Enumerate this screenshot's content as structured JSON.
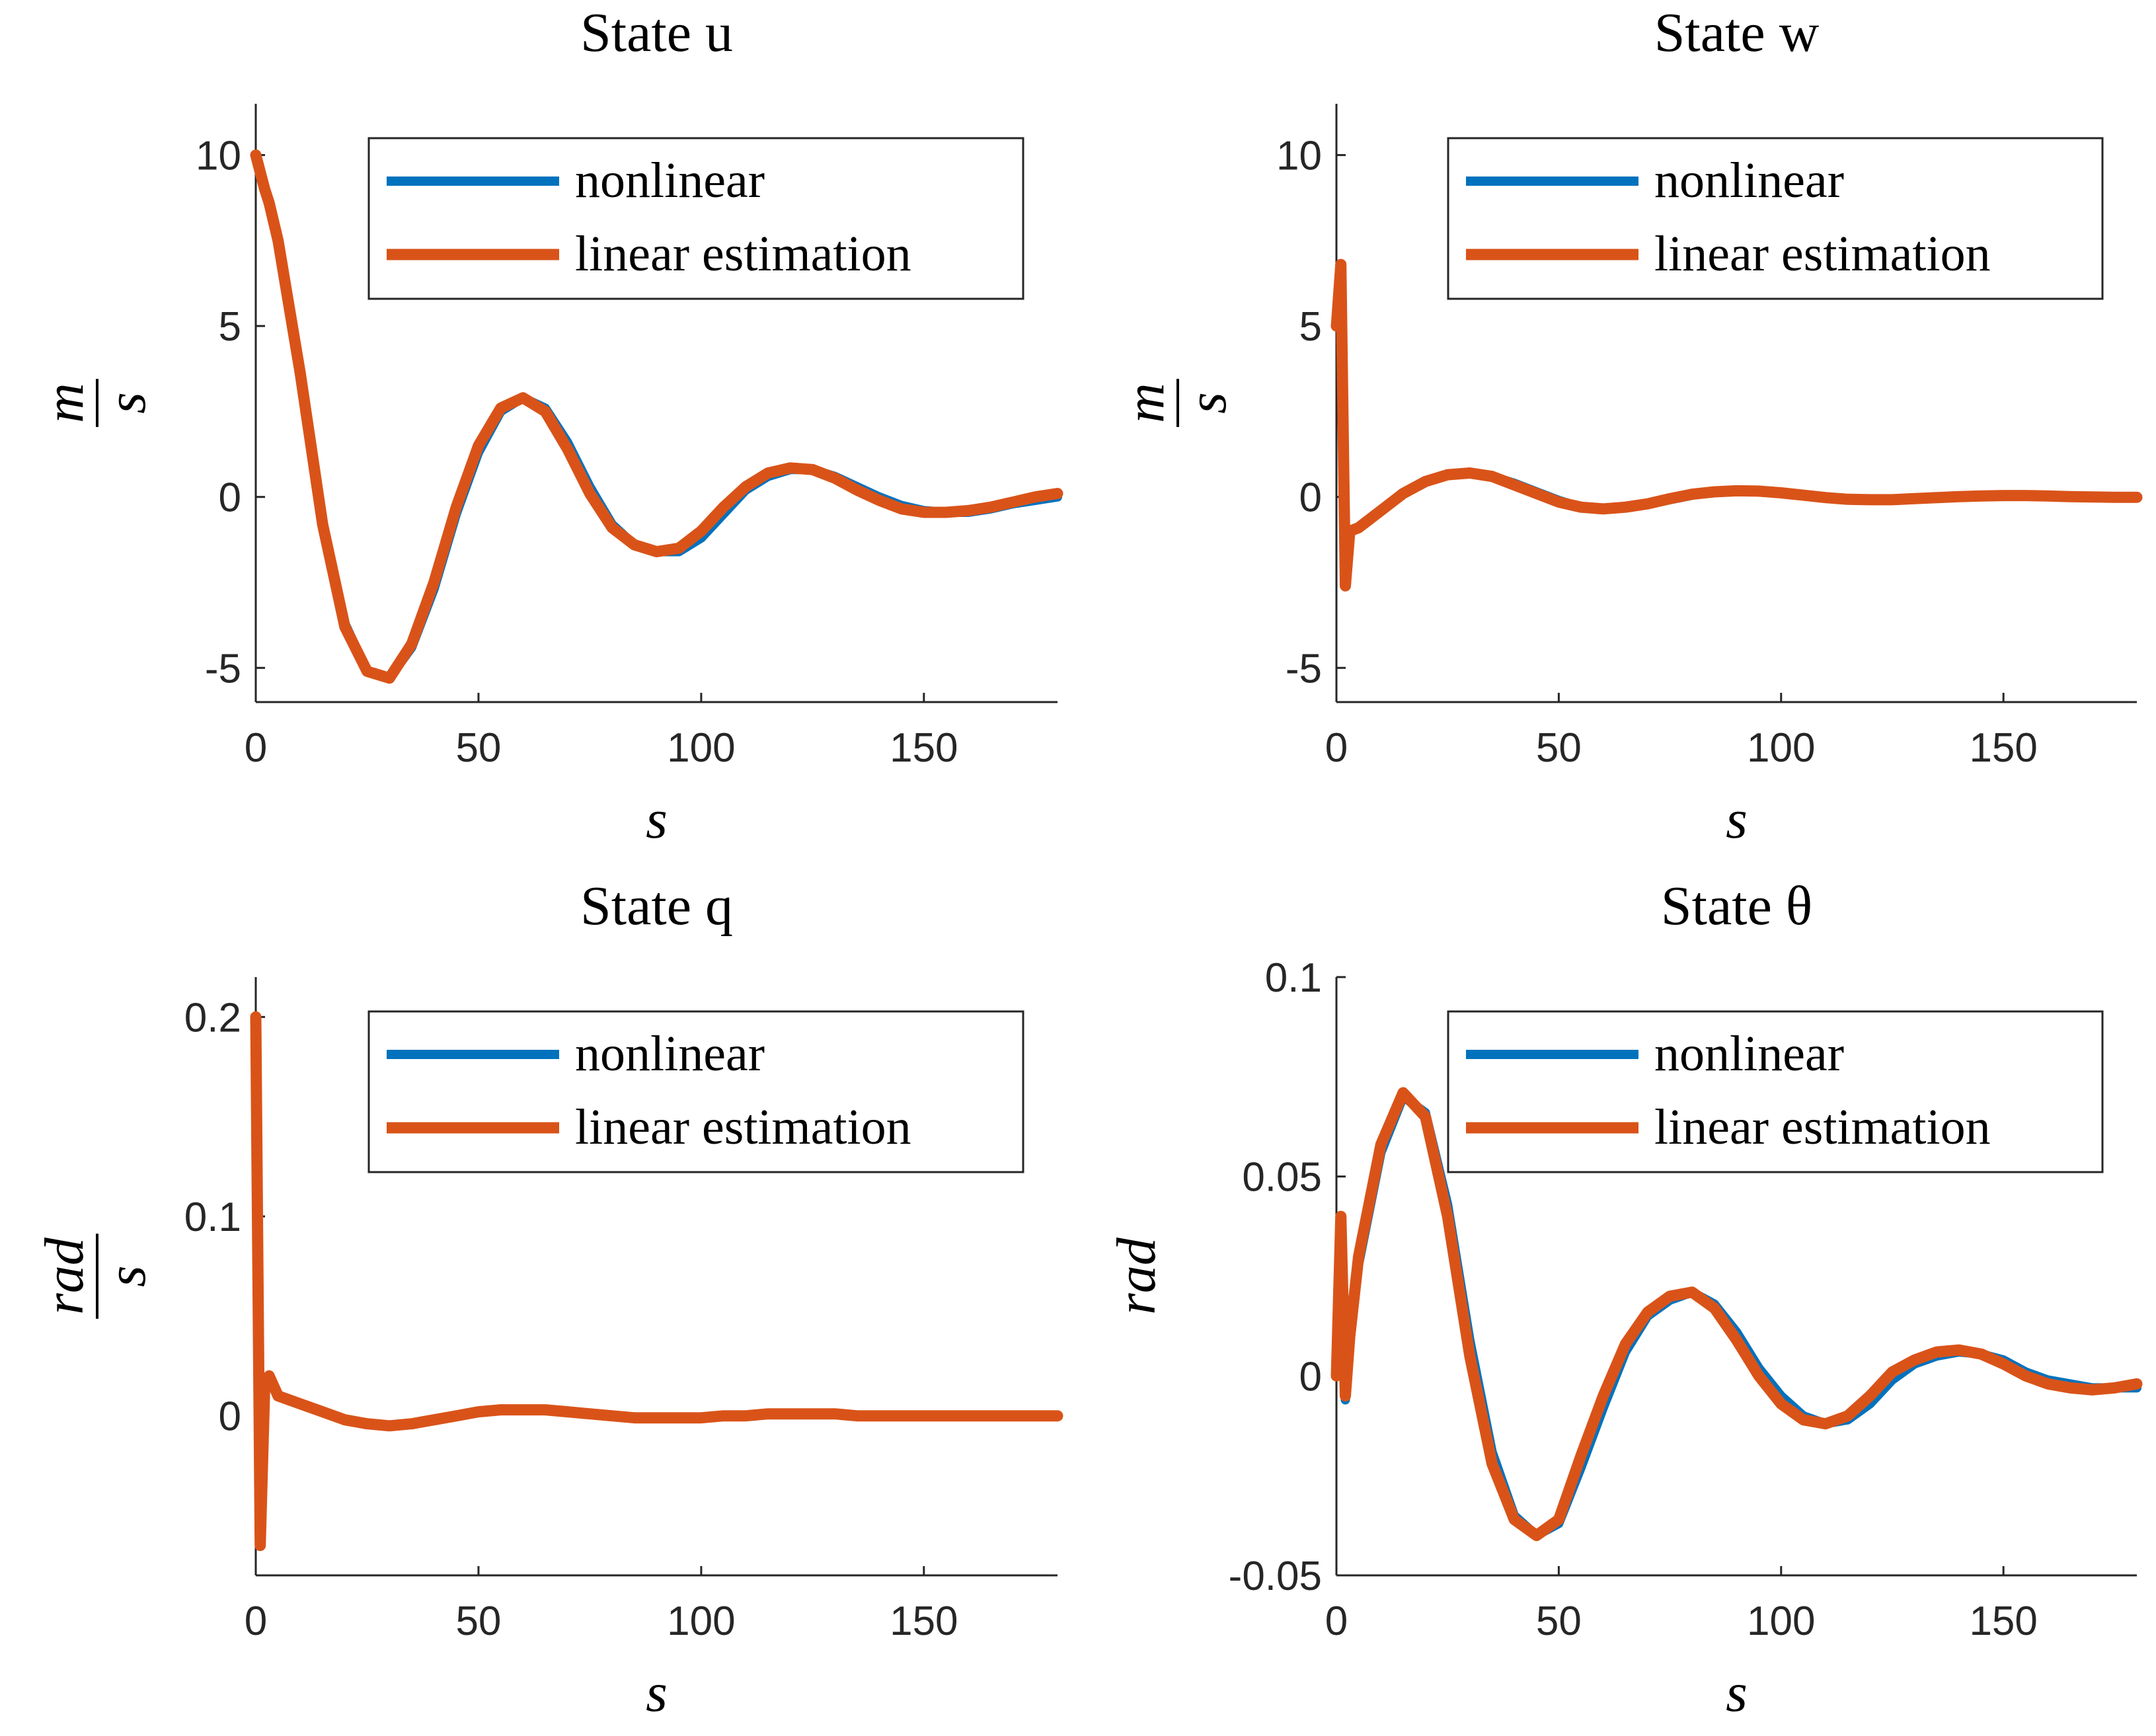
{
  "chart_data": [
    {
      "type": "line",
      "title": "State u",
      "xlabel": "s",
      "ylabel": {
        "numerator": "m",
        "denominator": "s"
      },
      "x": [
        0,
        1,
        2,
        3,
        5,
        10,
        15,
        20,
        25,
        30,
        35,
        40,
        45,
        50,
        55,
        60,
        65,
        70,
        75,
        80,
        85,
        90,
        95,
        100,
        105,
        110,
        115,
        120,
        125,
        130,
        135,
        140,
        145,
        150,
        155,
        160,
        165,
        170,
        175,
        180
      ],
      "series": [
        {
          "name": "nonlinear",
          "color": "#0072BD",
          "values": [
            10,
            9.5,
            9,
            8.6,
            7.5,
            3.7,
            -0.7,
            -3.7,
            -5.1,
            -5.3,
            -4.4,
            -2.7,
            -0.5,
            1.3,
            2.5,
            2.9,
            2.6,
            1.6,
            0.3,
            -0.8,
            -1.4,
            -1.6,
            -1.6,
            -1.2,
            -0.5,
            0.2,
            0.6,
            0.8,
            0.8,
            0.6,
            0.3,
            0,
            -0.25,
            -0.4,
            -0.45,
            -0.45,
            -0.35,
            -0.2,
            -0.1,
            0
          ]
        },
        {
          "name": "linear estimation",
          "color": "#D95319",
          "values": [
            10,
            9.5,
            9,
            8.6,
            7.5,
            3.6,
            -0.8,
            -3.8,
            -5.1,
            -5.3,
            -4.3,
            -2.5,
            -0.3,
            1.5,
            2.6,
            2.9,
            2.5,
            1.4,
            0.1,
            -0.9,
            -1.4,
            -1.6,
            -1.5,
            -1.0,
            -0.3,
            0.3,
            0.7,
            0.85,
            0.8,
            0.55,
            0.2,
            -0.1,
            -0.35,
            -0.45,
            -0.45,
            -0.4,
            -0.3,
            -0.15,
            0,
            0.1
          ]
        }
      ],
      "xlim": [
        0,
        180
      ],
      "xticks": [
        0,
        50,
        100,
        150
      ],
      "ylim": [
        -6,
        11.5
      ],
      "yticks": [
        -5,
        0,
        5,
        10
      ],
      "legend": "northeast"
    },
    {
      "type": "line",
      "title": "State w",
      "xlabel": "s",
      "ylabel": {
        "numerator": "m",
        "denominator": "s"
      },
      "x": [
        0,
        1,
        2,
        3,
        5,
        10,
        15,
        20,
        25,
        30,
        35,
        40,
        45,
        50,
        55,
        60,
        65,
        70,
        75,
        80,
        85,
        90,
        95,
        100,
        105,
        110,
        115,
        120,
        125,
        130,
        135,
        140,
        145,
        150,
        155,
        160,
        165,
        170,
        175,
        180
      ],
      "series": [
        {
          "name": "nonlinear",
          "color": "#0072BD",
          "values": [
            5,
            6.7,
            -2.5,
            -1.0,
            -0.9,
            -0.4,
            0.1,
            0.45,
            0.65,
            0.7,
            0.6,
            0.4,
            0.15,
            -0.1,
            -0.3,
            -0.35,
            -0.3,
            -0.2,
            -0.08,
            0.05,
            0.13,
            0.17,
            0.17,
            0.13,
            0.07,
            0,
            -0.05,
            -0.08,
            -0.08,
            -0.06,
            -0.03,
            0,
            0.02,
            0.04,
            0.04,
            0.03,
            0.02,
            0.01,
            0,
            -0.01
          ]
        },
        {
          "name": "linear estimation",
          "color": "#D95319",
          "values": [
            5,
            6.8,
            -2.6,
            -1.0,
            -0.9,
            -0.4,
            0.1,
            0.45,
            0.65,
            0.7,
            0.6,
            0.35,
            0.1,
            -0.15,
            -0.3,
            -0.35,
            -0.3,
            -0.2,
            -0.05,
            0.08,
            0.15,
            0.18,
            0.17,
            0.12,
            0.05,
            -0.02,
            -0.07,
            -0.08,
            -0.08,
            -0.05,
            -0.02,
            0.01,
            0.03,
            0.04,
            0.04,
            0.03,
            0.01,
            0,
            -0.01,
            -0.01
          ]
        }
      ],
      "xlim": [
        0,
        180
      ],
      "xticks": [
        0,
        50,
        100,
        150
      ],
      "ylim": [
        -6,
        11.5
      ],
      "yticks": [
        -5,
        0,
        5,
        10
      ],
      "legend": "northeast"
    },
    {
      "type": "line",
      "title": "State q",
      "xlabel": "s",
      "ylabel": {
        "numerator": "rad",
        "denominator": "s"
      },
      "x": [
        0,
        1,
        2,
        3,
        5,
        10,
        15,
        20,
        25,
        30,
        35,
        40,
        45,
        50,
        55,
        60,
        65,
        70,
        75,
        80,
        85,
        90,
        95,
        100,
        105,
        110,
        115,
        120,
        125,
        130,
        135,
        140,
        145,
        150,
        155,
        160,
        165,
        170,
        175,
        180
      ],
      "series": [
        {
          "name": "nonlinear",
          "color": "#0072BD",
          "values": [
            0.195,
            -0.06,
            0.012,
            0.018,
            0.01,
            0.006,
            0.002,
            -0.002,
            -0.004,
            -0.005,
            -0.004,
            -0.002,
            0,
            0.002,
            0.003,
            0.003,
            0.003,
            0.002,
            0.001,
            0,
            -0.001,
            -0.001,
            -0.001,
            -0.001,
            0,
            0,
            0.001,
            0.001,
            0.001,
            0.001,
            0,
            0,
            0,
            0,
            0,
            0,
            0,
            0,
            0,
            0
          ]
        },
        {
          "name": "linear estimation",
          "color": "#D95319",
          "values": [
            0.2,
            -0.065,
            0.015,
            0.02,
            0.01,
            0.006,
            0.002,
            -0.002,
            -0.004,
            -0.005,
            -0.004,
            -0.002,
            0,
            0.002,
            0.003,
            0.003,
            0.003,
            0.002,
            0.001,
            0,
            -0.001,
            -0.001,
            -0.001,
            -0.001,
            0,
            0,
            0.001,
            0.001,
            0.001,
            0.001,
            0,
            0,
            0,
            0,
            0,
            0,
            0,
            0,
            0,
            0
          ]
        }
      ],
      "xlim": [
        0,
        180
      ],
      "xticks": [
        0,
        50,
        100,
        150
      ],
      "ylim": [
        -0.08,
        0.22
      ],
      "yticks": [
        0,
        0.1,
        0.2
      ],
      "legend": "northeast"
    },
    {
      "type": "line",
      "title": "State θ",
      "xlabel": "s",
      "ylabel": "rad",
      "x": [
        0,
        1,
        2,
        3,
        5,
        10,
        15,
        20,
        25,
        30,
        35,
        40,
        45,
        50,
        55,
        60,
        65,
        70,
        75,
        80,
        85,
        90,
        95,
        100,
        105,
        110,
        115,
        120,
        125,
        130,
        135,
        140,
        145,
        150,
        155,
        160,
        165,
        170,
        175,
        180
      ],
      "series": [
        {
          "name": "nonlinear",
          "color": "#0072BD",
          "values": [
            0,
            0.038,
            -0.006,
            0.008,
            0.028,
            0.056,
            0.07,
            0.066,
            0.043,
            0.009,
            -0.019,
            -0.035,
            -0.04,
            -0.037,
            -0.023,
            -0.008,
            0.006,
            0.015,
            0.019,
            0.021,
            0.018,
            0.011,
            0.002,
            -0.005,
            -0.01,
            -0.012,
            -0.011,
            -0.007,
            -0.001,
            0.003,
            0.005,
            0.006,
            0.0055,
            0.004,
            0.001,
            -0.001,
            -0.002,
            -0.003,
            -0.003,
            -0.003
          ]
        },
        {
          "name": "linear estimation",
          "color": "#D95319",
          "values": [
            0,
            0.04,
            -0.005,
            0.01,
            0.03,
            0.058,
            0.071,
            0.065,
            0.04,
            0.005,
            -0.022,
            -0.036,
            -0.04,
            -0.036,
            -0.02,
            -0.005,
            0.008,
            0.016,
            0.02,
            0.021,
            0.017,
            0.009,
            0,
            -0.007,
            -0.011,
            -0.012,
            -0.01,
            -0.005,
            0.001,
            0.004,
            0.006,
            0.0065,
            0.0055,
            0.003,
            0,
            -0.002,
            -0.003,
            -0.0035,
            -0.003,
            -0.002
          ]
        }
      ],
      "xlim": [
        0,
        180
      ],
      "xticks": [
        0,
        50,
        100,
        150
      ],
      "ylim": [
        -0.05,
        0.1
      ],
      "yticks": [
        -0.05,
        0,
        0.05,
        0.1
      ],
      "legend": "northeast"
    }
  ]
}
